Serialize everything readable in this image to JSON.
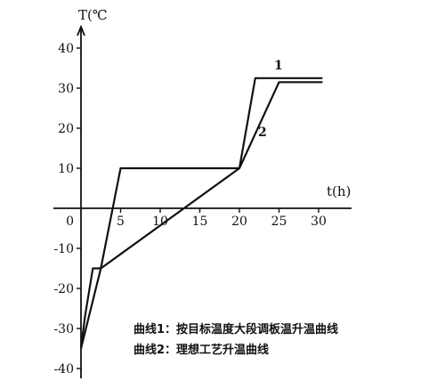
{
  "chart_data": {
    "type": "line",
    "ylabel": "T(℃",
    "xlabel": "t(h)",
    "xlim": [
      0,
      31
    ],
    "ylim": [
      -40,
      40
    ],
    "x_ticks": [
      0,
      5,
      10,
      15,
      20,
      25,
      30
    ],
    "y_ticks": [
      40,
      30,
      20,
      10,
      -10,
      -20,
      -30,
      -40
    ],
    "grid": false,
    "series": [
      {
        "name": "1",
        "x": [
          0,
          0.5,
          1.5,
          2.5,
          5,
          20,
          22,
          30.5
        ],
        "y": [
          -35,
          -27,
          -15,
          -15,
          10,
          10,
          32.5,
          32.5
        ]
      },
      {
        "name": "2",
        "x": [
          0,
          2.5,
          20,
          25,
          30.5
        ],
        "y": [
          -35,
          -15,
          10,
          31.5,
          31.5
        ]
      }
    ],
    "legend": [
      "曲线1：按目标温度大段调板温升温曲线",
      "曲线2：理想工艺升温曲线"
    ]
  }
}
